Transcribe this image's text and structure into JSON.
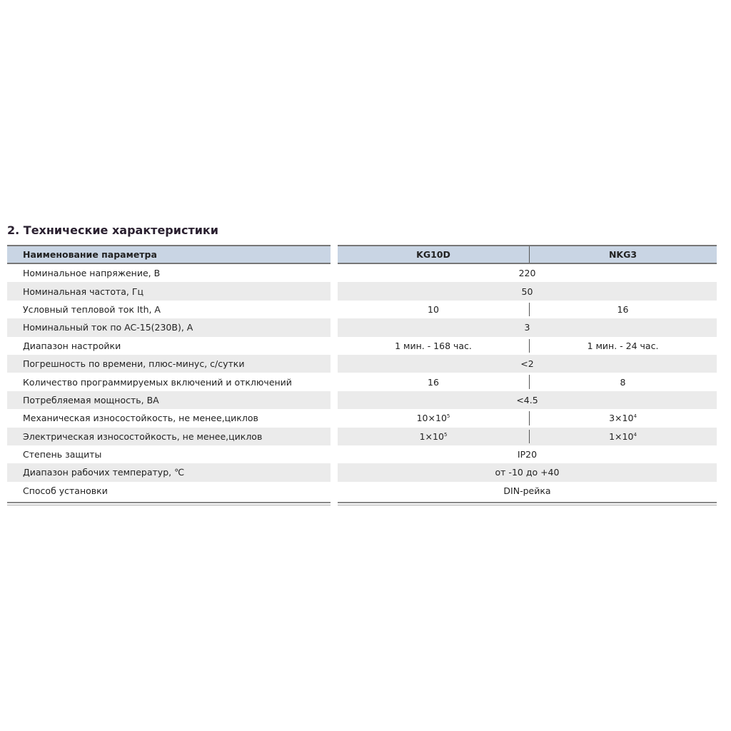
{
  "title": "2. Технические характеристики",
  "header": {
    "param": "Наименование параметра",
    "models": [
      "KG10D",
      "NKG3"
    ]
  },
  "rows": [
    {
      "name": "Номинальное напряжение, В",
      "value": "220"
    },
    {
      "name": "Номинальная частота, Гц",
      "value": "50"
    },
    {
      "name": "Условный тепловой ток Ith, А",
      "values": [
        "10",
        "16"
      ]
    },
    {
      "name": "Номинальный ток по AC-15(230В), А",
      "value": "3"
    },
    {
      "name": "Диапазон настройки",
      "values": [
        "1 мин. - 168 час.",
        "1 мин. - 24 час."
      ]
    },
    {
      "name": "Погрешность по времени, плюс-минус, с/сутки",
      "value": "<2"
    },
    {
      "name": "Количество программируемых включений и отключений",
      "values": [
        "16",
        "8"
      ]
    },
    {
      "name": "Потребляемая мощность, ВА",
      "value": "<4.5"
    },
    {
      "name": "Механическая износостойкость, не менее,циклов",
      "values": [
        "10×10",
        "3×10"
      ],
      "exp": [
        "5",
        "4"
      ]
    },
    {
      "name": "Электрическая износостойкость, не менее,циклов",
      "values": [
        "1×10",
        "1×10"
      ],
      "exp": [
        "5",
        "4"
      ]
    },
    {
      "name": "Степень защиты",
      "value": "IP20"
    },
    {
      "name": "Диапазон рабочих температур, ℃",
      "value": "от -10 до +40"
    },
    {
      "name": "Способ установки",
      "value": "DIN-рейка"
    }
  ]
}
